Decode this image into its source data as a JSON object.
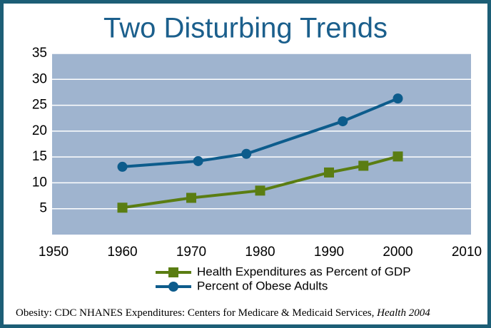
{
  "chart_data": {
    "type": "line",
    "title": "Two Disturbing Trends",
    "xlim": [
      1950,
      2010
    ],
    "xticks": [
      1950,
      1960,
      1970,
      1980,
      1990,
      2000,
      2010
    ],
    "ylim": [
      0,
      35
    ],
    "yticks": [
      5,
      10,
      15,
      20,
      25,
      30,
      35
    ],
    "grid": true,
    "series": [
      {
        "name": "Health Expenditures as Percent of GDP",
        "color": "#5a7d12",
        "marker": "square",
        "x": [
          1960,
          1970,
          1980,
          1990,
          1995,
          2000
        ],
        "values": [
          5.2,
          7.1,
          8.5,
          12,
          13.3,
          15.1
        ]
      },
      {
        "name": "Percent of Obese Adults",
        "color": "#0d5c8c",
        "marker": "circle",
        "x": [
          1960,
          1971,
          1978,
          1992,
          2000
        ],
        "values": [
          13.1,
          14.2,
          15.6,
          21.9,
          26.3
        ]
      }
    ],
    "legend": "bottom",
    "source": "Obesity: CDC NHANES Expenditures: Centers for Medicare & Medicaid Services,",
    "source_emphasis": "Health 2004"
  }
}
